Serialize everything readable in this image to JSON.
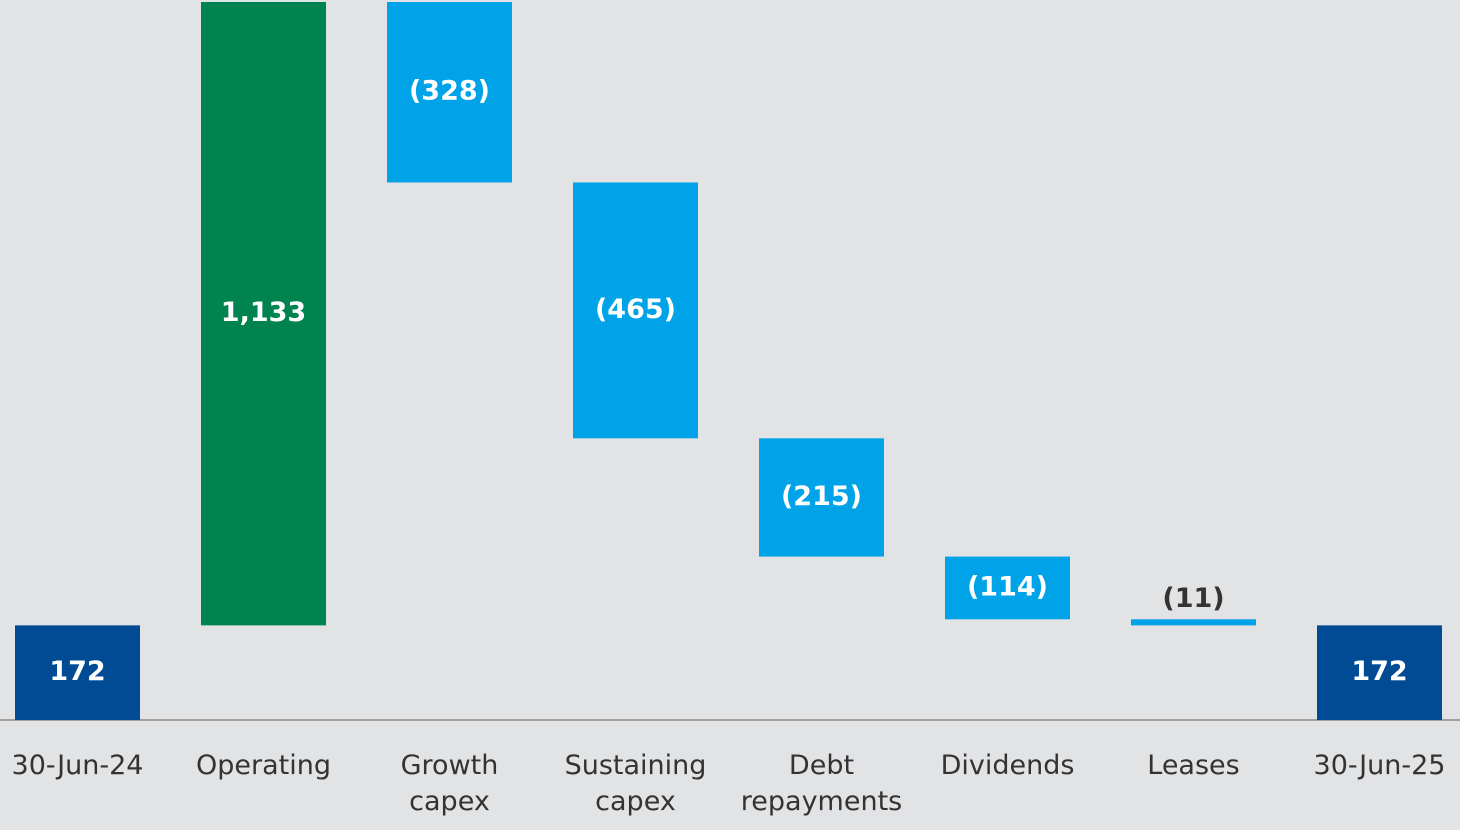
{
  "chart_data": {
    "type": "waterfall",
    "categories": [
      "30-Jun-24",
      "Operating",
      "Growth capex",
      "Sustaining capex",
      "Debt repayments",
      "Dividends",
      "Leases",
      "30-Jun-25"
    ],
    "values": [
      172,
      1133,
      -328,
      -465,
      -215,
      -114,
      -11,
      172
    ],
    "value_labels": [
      "172",
      "1,133",
      "(328)",
      "(465)",
      "(215)",
      "(114)",
      "(11)",
      "172"
    ],
    "measure": [
      "total",
      "relative",
      "relative",
      "relative",
      "relative",
      "relative",
      "relative",
      "total"
    ],
    "colors": {
      "total": "#004b93",
      "increase": "#00834f",
      "decrease": "#00a3e8"
    }
  }
}
